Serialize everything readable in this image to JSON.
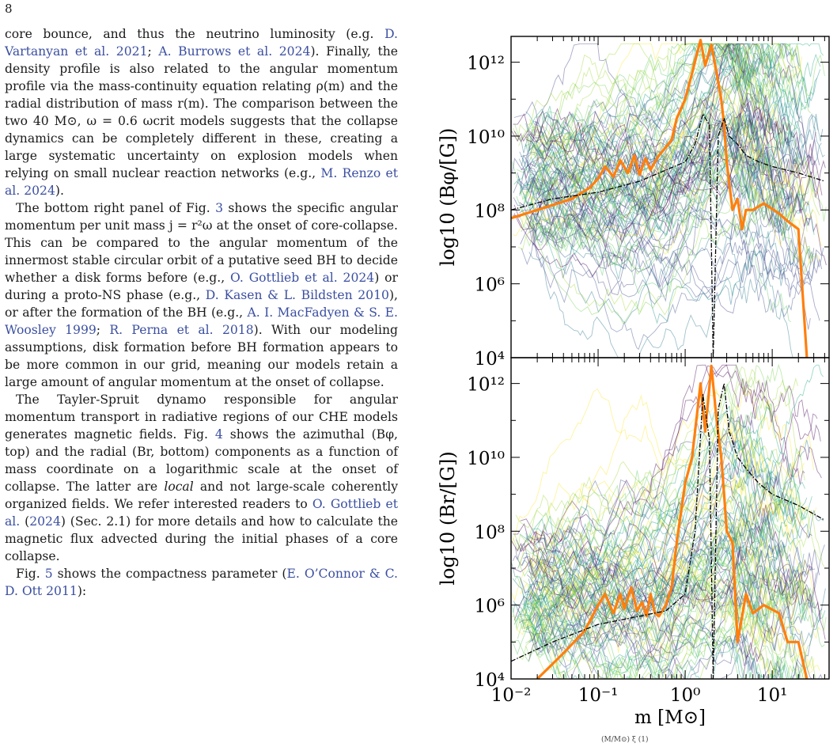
{
  "page": {
    "number": "8"
  },
  "text": {
    "p1": [
      {
        "t": "core bounce, and thus the neutrino luminosity (e.g. "
      },
      {
        "t": "D. Vartanyan et al. 2021",
        "cite": true
      },
      {
        "t": "; "
      },
      {
        "t": "A. Burrows et al. 2024",
        "cite": true
      },
      {
        "t": "). Finally, the density profile is also related to the angular momentum profile via the mass-continuity equation relating ρ(m) and the radial distribution of mass r(m). The comparison between the two 40 M⊙, ω = 0.6 ωcrit models suggests that the collapse dynamics can be completely different in these, creating a large systematic uncertainty on explosion models when relying on small nuclear reaction networks (e.g., "
      },
      {
        "t": "M. Renzo et al. 2024",
        "cite": true
      },
      {
        "t": ")."
      }
    ],
    "p2": [
      {
        "t": "The bottom right panel of Fig. "
      },
      {
        "t": "3",
        "cite": true
      },
      {
        "t": " shows the specific angular momentum per unit mass j = r²ω at the onset of core-collapse. This can be compared to the angular momentum of the innermost stable circular orbit of a putative seed BH to decide whether a disk forms before (e.g., "
      },
      {
        "t": "O. Gottlieb et al. 2024",
        "cite": true
      },
      {
        "t": ") or during a proto-NS phase (e.g., "
      },
      {
        "t": "D. Kasen & L. Bildsten 2010",
        "cite": true
      },
      {
        "t": "), or after the formation of the BH (e.g., "
      },
      {
        "t": "A. I. MacFadyen & S. E. Woosley 1999",
        "cite": true
      },
      {
        "t": "; "
      },
      {
        "t": "R. Perna et al. 2018",
        "cite": true
      },
      {
        "t": "). With our modeling assumptions, disk formation before BH formation appears to be more common in our grid, meaning our models retain a large amount of angular momentum at the onset of collapse."
      }
    ],
    "p3": [
      {
        "t": "The Tayler-Spruit dynamo responsible for angular momentum transport in radiative regions of our CHE models generates magnetic fields. Fig. "
      },
      {
        "t": "4",
        "cite": true
      },
      {
        "t": " shows the azimuthal (Bφ, top) and the radial (Br, bottom) components as a function of mass coordinate on a logarithmic scale at the onset of collapse. The latter are "
      },
      {
        "t": "local",
        "em": true
      },
      {
        "t": " and not large-scale coherently organized fields. We refer interested readers to "
      },
      {
        "t": "O. Gottlieb et al.",
        "cite": true
      },
      {
        "t": " ("
      },
      {
        "t": "2024",
        "cite": true
      },
      {
        "t": ") (Sec. 2.1) for more details and how to calculate the magnetic flux advected during the initial phases of a core collapse."
      }
    ],
    "p4": [
      {
        "t": "Fig. "
      },
      {
        "t": "5",
        "cite": true
      },
      {
        "t": " shows the compactness parameter ("
      },
      {
        "t": "E. O’Connor & C. D. Ott 2011",
        "cite": true
      },
      {
        "t": "):"
      }
    ],
    "equation_fragment": "(M/M⊙)   ξ    (1)"
  },
  "figure": {
    "xlabel": "m [M⊙]",
    "x_ticks": [
      "10⁻²",
      "10⁻¹",
      "10⁰",
      "10¹"
    ],
    "highlight_color": "#ff7f0e",
    "reference_color": "#000000",
    "top": {
      "ylabel": "log10 (Bφ/[G])",
      "y_ticks": [
        "10⁴",
        "10⁶",
        "10⁸",
        "10¹⁰",
        "10¹²"
      ]
    },
    "bottom": {
      "ylabel": "log10 (Br/[G])",
      "y_ticks": [
        "10⁴",
        "10⁶",
        "10⁸",
        "10¹⁰",
        "10¹²"
      ]
    }
  },
  "chart_data": [
    {
      "type": "line",
      "xlabel": "m [M⊙]",
      "ylabel": "log10 (Bφ/[G])",
      "xscale": "log",
      "yscale": "log",
      "xlim": [
        0.01,
        45
      ],
      "ylim": [
        10000,
        5000000000000.0
      ],
      "grid": false,
      "series": [
        {
          "role": "highlight",
          "color": "#ff7f0e",
          "x": [
            0.01,
            0.02,
            0.05,
            0.08,
            0.1,
            0.12,
            0.15,
            0.18,
            0.22,
            0.26,
            0.3,
            0.35,
            0.4,
            0.45,
            0.5,
            0.6,
            0.7,
            0.8,
            1.0,
            1.2,
            1.5,
            1.7,
            2.0,
            2.3,
            2.6,
            2.8,
            3.0,
            3.5,
            4.0,
            4.5,
            5.0,
            6.0,
            8.0,
            12.0,
            15.0,
            20.0,
            25.0
          ],
          "y": [
            60000000.0,
            100000000.0,
            200000000.0,
            400000000.0,
            700000000.0,
            1500000000.0,
            800000000.0,
            2200000000.0,
            1000000000.0,
            3000000000.0,
            900000000.0,
            2500000000.0,
            1200000000.0,
            2000000000.0,
            3000000000.0,
            5000000000.0,
            8000000000.0,
            30000000000.0,
            100000000000.0,
            500000000000.0,
            4000000000000.0,
            800000000000.0,
            3000000000000.0,
            500000000000.0,
            100000000000.0,
            20000000000.0,
            2000000000.0,
            100000000.0,
            200000000.0,
            30000000.0,
            100000000.0,
            100000000.0,
            150000000.0,
            80000000.0,
            50000000.0,
            30000000.0,
            10000.0
          ]
        },
        {
          "role": "reference",
          "color": "#000000",
          "x": [
            0.01,
            0.03,
            0.1,
            0.3,
            0.6,
            1.0,
            1.3,
            1.6,
            1.9,
            2.1,
            2.4,
            2.8,
            3.2,
            4.0,
            5.0,
            7.0,
            10.0,
            20.0,
            40.0
          ],
          "y": [
            100000000.0,
            200000000.0,
            300000000.0,
            600000000.0,
            1200000000.0,
            2000000000.0,
            6000000000.0,
            40000000000.0,
            20000000000.0,
            10000.0,
            10000000000.0,
            30000000000.0,
            10000000000.0,
            6000000000.0,
            3000000000.0,
            2000000000.0,
            1500000000.0,
            1000000000.0,
            600000000.0
          ]
        }
      ]
    },
    {
      "type": "line",
      "xlabel": "m [M⊙]",
      "ylabel": "log10 (Br/[G])",
      "xscale": "log",
      "yscale": "log",
      "xlim": [
        0.01,
        45
      ],
      "ylim": [
        10000,
        5000000000000.0
      ],
      "grid": false,
      "series": [
        {
          "role": "highlight",
          "color": "#ff7f0e",
          "x": [
            0.02,
            0.04,
            0.07,
            0.1,
            0.12,
            0.15,
            0.18,
            0.2,
            0.24,
            0.28,
            0.32,
            0.36,
            0.4,
            0.45,
            0.5,
            0.6,
            0.7,
            0.8,
            1.0,
            1.2,
            1.5,
            1.7,
            2.0,
            2.3,
            2.6,
            2.8,
            3.0,
            3.5,
            4.0,
            5.0,
            6.0,
            8.0,
            12.0,
            15.0,
            20.0,
            25.0
          ],
          "y": [
            10000.0,
            50000.0,
            200000.0,
            1000000.0,
            2000000.0,
            600000.0,
            2000000.0,
            800000.0,
            3000000.0,
            700000.0,
            1200000.0,
            500000.0,
            2000000.0,
            600000.0,
            500000.0,
            1000000.0,
            3000000.0,
            50000000.0,
            2000000000.0,
            10000000000.0,
            1000000000000.0,
            50000000000.0,
            3000000000000.0,
            100000000000.0,
            10000000000.0,
            1000000000.0,
            100000000.0,
            50000000.0,
            100000.0,
            2000000.0,
            600000.0,
            1000000.0,
            600000.0,
            100000.0,
            100000.0,
            10000.0
          ]
        },
        {
          "role": "reference",
          "color": "#000000",
          "x": [
            0.01,
            0.03,
            0.1,
            0.3,
            0.6,
            1.0,
            1.3,
            1.6,
            1.9,
            2.1,
            2.4,
            2.8,
            3.2,
            4.0,
            5.0,
            7.0,
            10.0,
            20.0,
            40.0
          ],
          "y": [
            30000.0,
            100000.0,
            300000.0,
            500000.0,
            700000.0,
            2000000.0,
            100000000.0,
            500000000000.0,
            30000000000.0,
            10000.0,
            200000000000.0,
            1000000000000.0,
            50000000000.0,
            10000000000.0,
            5000000000.0,
            2000000000.0,
            1000000000.0,
            500000000.0,
            200000000.0
          ]
        }
      ]
    }
  ]
}
